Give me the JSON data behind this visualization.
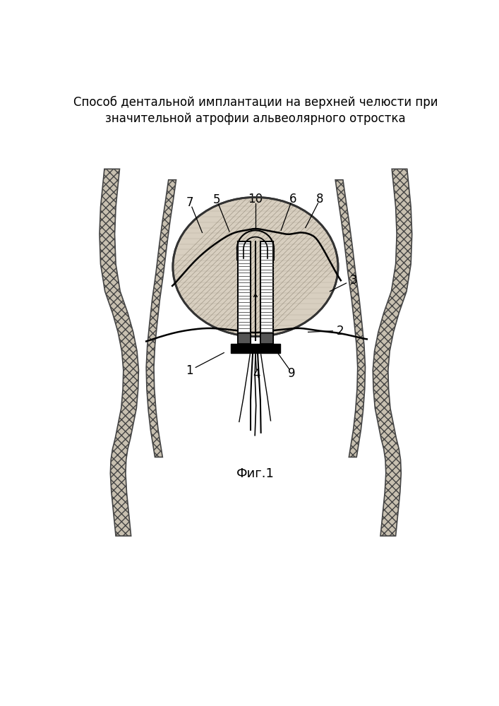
{
  "title_line1": "Способ дентальной имплантации на верхней челюсти при",
  "title_line2": "значительной атрофии альвеолярного отростка",
  "fig_label": "Фиг.1",
  "bg_color": "#ffffff",
  "title_fontsize": 13,
  "fig_label_fontsize": 13
}
